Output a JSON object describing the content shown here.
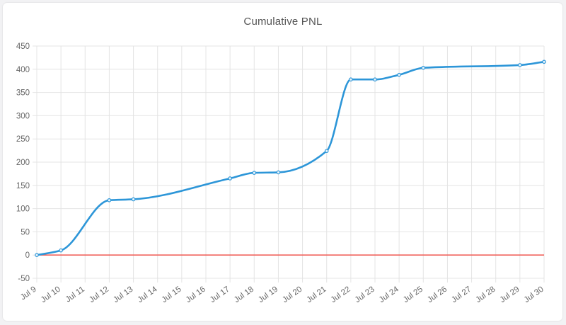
{
  "chart_data": {
    "type": "line",
    "title": "Cumulative PNL",
    "xlabel": "",
    "ylabel": "",
    "categories": [
      "Jul 9",
      "Jul 10",
      "Jul 11",
      "Jul 12",
      "Jul 13",
      "Jul 14",
      "Jul 15",
      "Jul 16",
      "Jul 17",
      "Jul 18",
      "Jul 19",
      "Jul 20",
      "Jul 21",
      "Jul 22",
      "Jul 23",
      "Jul 24",
      "Jul 25",
      "Jul 26",
      "Jul 27",
      "Jul 28",
      "Jul 29",
      "Jul 30"
    ],
    "y_ticks": [
      -50,
      0,
      50,
      100,
      150,
      200,
      250,
      300,
      350,
      400,
      450
    ],
    "ylim": [
      -50,
      450
    ],
    "grid": true,
    "legend": "none",
    "series": [
      {
        "values": [
          0,
          10,
          null,
          118,
          120,
          null,
          null,
          null,
          165,
          177,
          178,
          null,
          224,
          378,
          378,
          388,
          403,
          null,
          null,
          null,
          409,
          416
        ],
        "color": "#2d96d8"
      }
    ],
    "reference_line": {
      "y": 0,
      "color": "#f0605a"
    }
  }
}
